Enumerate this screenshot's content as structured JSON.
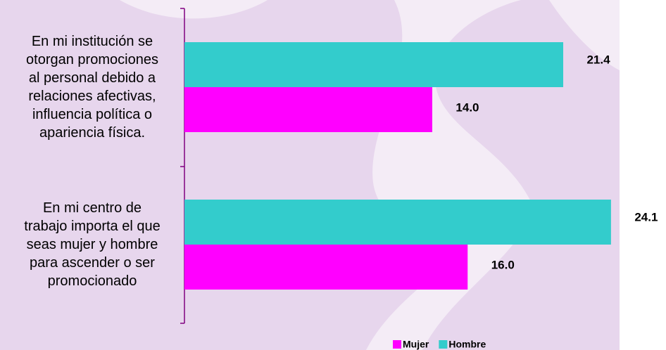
{
  "chart_data": {
    "type": "hbar",
    "categories": [
      "En mi institución se\notorgan promociones\nal personal debido a\nrelaciones afectivas,\ninfluencia política o\napariencia física.",
      "En mi centro de\ntrabajo importa el que\nseas mujer y hombre\npara ascender o ser\npromocionado"
    ],
    "series": [
      {
        "name": "Hombre",
        "color": "#33cccc",
        "values": [
          21.4,
          24.1
        ],
        "value_labels": [
          "21.4",
          "24.1"
        ]
      },
      {
        "name": "Mujer",
        "color": "#ff00ff",
        "values": [
          14,
          16
        ],
        "value_labels": [
          "14.0",
          "16.0"
        ]
      }
    ],
    "legend_order": [
      1,
      0
    ]
  }
}
